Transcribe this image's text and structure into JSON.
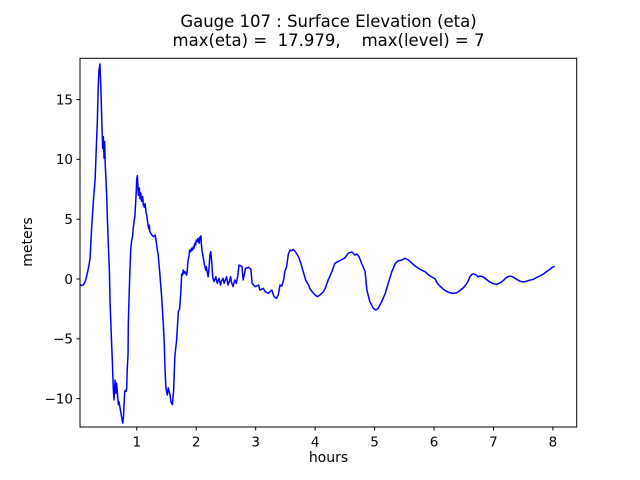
{
  "figure": {
    "background": "#ffffff",
    "axes_edge_color": "#000000"
  },
  "chart_data": {
    "type": "line",
    "title": "Gauge 107 : Surface Elevation (eta)",
    "subtitle": "max(eta) =  17.979,    max(level) = 7",
    "xlabel": "hours",
    "ylabel": "meters",
    "grid": false,
    "legend": null,
    "annotations": {
      "max_eta": 17.979,
      "max_level": 7
    },
    "xlim": [
      0.045,
      8.4
    ],
    "ylim": [
      -12.37,
      18.45
    ],
    "x_ticks": [
      1,
      2,
      3,
      4,
      5,
      6,
      7,
      8
    ],
    "x_tick_labels": [
      "1",
      "2",
      "3",
      "4",
      "5",
      "6",
      "7",
      "8"
    ],
    "y_ticks": [
      -10,
      -5,
      0,
      5,
      10,
      15
    ],
    "y_tick_labels": [
      "−10",
      "−5",
      "0",
      "5",
      "10",
      "15"
    ],
    "series": [
      {
        "name": "eta",
        "color": "#0000ff",
        "line_width": 1.5,
        "points": [
          [
            0.045,
            -0.45
          ],
          [
            0.07,
            -0.55
          ],
          [
            0.1,
            -0.5
          ],
          [
            0.13,
            -0.25
          ],
          [
            0.16,
            0.3
          ],
          [
            0.19,
            1.0
          ],
          [
            0.214,
            1.73
          ],
          [
            0.24,
            4.2
          ],
          [
            0.27,
            6.5
          ],
          [
            0.3,
            8.4
          ],
          [
            0.315,
            10.4
          ],
          [
            0.337,
            13.2
          ],
          [
            0.35,
            15.9
          ],
          [
            0.365,
            17.5
          ],
          [
            0.38,
            17.979
          ],
          [
            0.4,
            15.4
          ],
          [
            0.415,
            12.6
          ],
          [
            0.427,
            10.9
          ],
          [
            0.437,
            11.9
          ],
          [
            0.45,
            10.1
          ],
          [
            0.46,
            11.5
          ],
          [
            0.47,
            9.5
          ],
          [
            0.494,
            7.0
          ],
          [
            0.505,
            5.1
          ],
          [
            0.52,
            3.1
          ],
          [
            0.54,
            0.6
          ],
          [
            0.55,
            -1.9
          ],
          [
            0.57,
            -4.5
          ],
          [
            0.59,
            -7.0
          ],
          [
            0.605,
            -9.2
          ],
          [
            0.617,
            -10.1
          ],
          [
            0.634,
            -8.45
          ],
          [
            0.65,
            -9.55
          ],
          [
            0.66,
            -8.7
          ],
          [
            0.69,
            -10.5
          ],
          [
            0.7,
            -10.25
          ],
          [
            0.72,
            -10.8
          ],
          [
            0.74,
            -11.4
          ],
          [
            0.764,
            -12.05
          ],
          [
            0.775,
            -11.6
          ],
          [
            0.786,
            -10.5
          ],
          [
            0.797,
            -9.4
          ],
          [
            0.81,
            -9.3
          ],
          [
            0.82,
            -9.4
          ],
          [
            0.83,
            -9.15
          ],
          [
            0.84,
            -7.5
          ],
          [
            0.853,
            -6.3
          ],
          [
            0.858,
            -3.6
          ],
          [
            0.875,
            -0.8
          ],
          [
            0.886,
            0.9
          ],
          [
            0.9,
            2.57
          ],
          [
            0.915,
            3.26
          ],
          [
            0.93,
            3.54
          ],
          [
            0.94,
            4.24
          ],
          [
            0.97,
            5.35
          ],
          [
            0.988,
            7.0
          ],
          [
            1.0,
            8.4
          ],
          [
            1.01,
            8.64
          ],
          [
            1.027,
            7.0
          ],
          [
            1.043,
            7.6
          ],
          [
            1.055,
            6.7
          ],
          [
            1.066,
            7.2
          ],
          [
            1.08,
            6.5
          ],
          [
            1.1,
            6.9
          ],
          [
            1.11,
            6.2
          ],
          [
            1.127,
            6.0
          ],
          [
            1.14,
            6.3
          ],
          [
            1.155,
            5.6
          ],
          [
            1.167,
            5.35
          ],
          [
            1.18,
            4.8
          ],
          [
            1.2,
            4.2
          ],
          [
            1.21,
            4.5
          ],
          [
            1.22,
            3.96
          ],
          [
            1.25,
            3.7
          ],
          [
            1.28,
            3.54
          ],
          [
            1.31,
            3.68
          ],
          [
            1.335,
            2.84
          ],
          [
            1.36,
            2.0
          ],
          [
            1.39,
            0.33
          ],
          [
            1.42,
            -1.6
          ],
          [
            1.447,
            -3.85
          ],
          [
            1.46,
            -5.1
          ],
          [
            1.476,
            -7.6
          ],
          [
            1.49,
            -9.1
          ],
          [
            1.514,
            -9.7
          ],
          [
            1.53,
            -9.1
          ],
          [
            1.56,
            -9.7
          ],
          [
            1.576,
            -10.3
          ],
          [
            1.6,
            -10.5
          ],
          [
            1.62,
            -9.3
          ],
          [
            1.64,
            -6.5
          ],
          [
            1.67,
            -5.1
          ],
          [
            1.7,
            -2.7
          ],
          [
            1.72,
            -2.5
          ],
          [
            1.74,
            -1.2
          ],
          [
            1.755,
            0.4
          ],
          [
            1.77,
            0.33
          ],
          [
            1.78,
            0.75
          ],
          [
            1.795,
            0.47
          ],
          [
            1.81,
            0.61
          ],
          [
            1.84,
            0.33
          ],
          [
            1.85,
            0.75
          ],
          [
            1.86,
            1.45
          ],
          [
            1.88,
            2.0
          ],
          [
            1.89,
            2.42
          ],
          [
            1.91,
            2.28
          ],
          [
            1.92,
            2.57
          ],
          [
            1.94,
            2.42
          ],
          [
            1.95,
            2.7
          ],
          [
            1.96,
            2.57
          ],
          [
            1.975,
            2.98
          ],
          [
            1.99,
            2.84
          ],
          [
            2.0,
            3.26
          ],
          [
            2.02,
            3.12
          ],
          [
            2.03,
            3.4
          ],
          [
            2.05,
            2.98
          ],
          [
            2.06,
            3.48
          ],
          [
            2.08,
            3.6
          ],
          [
            2.085,
            2.98
          ],
          [
            2.1,
            2.28
          ],
          [
            2.115,
            1.86
          ],
          [
            2.13,
            1.45
          ],
          [
            2.14,
            1.17
          ],
          [
            2.16,
            0.75
          ],
          [
            2.17,
            1.03
          ],
          [
            2.185,
            0.61
          ],
          [
            2.2,
            0.19
          ],
          [
            2.215,
            0.89
          ],
          [
            2.23,
            2.0
          ],
          [
            2.245,
            2.28
          ],
          [
            2.255,
            1.73
          ],
          [
            2.27,
            0.75
          ],
          [
            2.28,
            0.06
          ],
          [
            2.3,
            -0.22
          ],
          [
            2.31,
            -0.08
          ],
          [
            2.33,
            0.19
          ],
          [
            2.34,
            -0.08
          ],
          [
            2.355,
            -0.36
          ],
          [
            2.37,
            -0.08
          ],
          [
            2.385,
            0.06
          ],
          [
            2.395,
            -0.22
          ],
          [
            2.41,
            -0.5
          ],
          [
            2.42,
            -0.22
          ],
          [
            2.45,
            0.06
          ],
          [
            2.47,
            -0.36
          ],
          [
            2.48,
            -0.22
          ],
          [
            2.51,
            0.19
          ],
          [
            2.525,
            -0.22
          ],
          [
            2.535,
            -0.5
          ],
          [
            2.565,
            -0.08
          ],
          [
            2.58,
            0.19
          ],
          [
            2.59,
            -0.22
          ],
          [
            2.62,
            -0.64
          ],
          [
            2.64,
            -0.22
          ],
          [
            2.65,
            -0.08
          ],
          [
            2.675,
            -0.36
          ],
          [
            2.7,
            0.3
          ],
          [
            2.72,
            1.17
          ],
          [
            2.77,
            1.03
          ],
          [
            2.79,
            -0.08
          ],
          [
            2.83,
            0.89
          ],
          [
            2.88,
            0.98
          ],
          [
            2.92,
            0.81
          ],
          [
            2.94,
            -0.36
          ],
          [
            2.99,
            -0.64
          ],
          [
            3.05,
            -0.5
          ],
          [
            3.07,
            -0.92
          ],
          [
            3.13,
            -0.78
          ],
          [
            3.16,
            -1.06
          ],
          [
            3.21,
            -1.2
          ],
          [
            3.27,
            -0.92
          ],
          [
            3.31,
            -1.48
          ],
          [
            3.35,
            -1.61
          ],
          [
            3.38,
            -1.34
          ],
          [
            3.41,
            -0.5
          ],
          [
            3.44,
            -0.59
          ],
          [
            3.47,
            -0.08
          ],
          [
            3.49,
            0.61
          ],
          [
            3.52,
            1.03
          ],
          [
            3.55,
            2.09
          ],
          [
            3.58,
            2.42
          ],
          [
            3.61,
            2.37
          ],
          [
            3.63,
            2.48
          ],
          [
            3.67,
            2.28
          ],
          [
            3.72,
            1.86
          ],
          [
            3.76,
            1.31
          ],
          [
            3.8,
            0.61
          ],
          [
            3.84,
            -0.08
          ],
          [
            3.89,
            -0.5
          ],
          [
            3.91,
            -0.78
          ],
          [
            3.95,
            -1.06
          ],
          [
            4.0,
            -1.34
          ],
          [
            4.04,
            -1.48
          ],
          [
            4.08,
            -1.34
          ],
          [
            4.14,
            -1.06
          ],
          [
            4.17,
            -0.78
          ],
          [
            4.22,
            -0.08
          ],
          [
            4.28,
            0.6
          ],
          [
            4.33,
            1.3
          ],
          [
            4.39,
            1.48
          ],
          [
            4.44,
            1.6
          ],
          [
            4.5,
            1.76
          ],
          [
            4.56,
            2.17
          ],
          [
            4.62,
            2.26
          ],
          [
            4.67,
            2.0
          ],
          [
            4.7,
            2.1
          ],
          [
            4.74,
            1.85
          ],
          [
            4.78,
            1.34
          ],
          [
            4.84,
            0.64
          ],
          [
            4.87,
            -0.9
          ],
          [
            4.92,
            -1.9
          ],
          [
            4.98,
            -2.45
          ],
          [
            5.02,
            -2.59
          ],
          [
            5.06,
            -2.45
          ],
          [
            5.12,
            -1.9
          ],
          [
            5.18,
            -1.2
          ],
          [
            5.23,
            -0.36
          ],
          [
            5.29,
            0.61
          ],
          [
            5.35,
            1.31
          ],
          [
            5.4,
            1.53
          ],
          [
            5.46,
            1.59
          ],
          [
            5.51,
            1.73
          ],
          [
            5.57,
            1.59
          ],
          [
            5.63,
            1.31
          ],
          [
            5.68,
            1.09
          ],
          [
            5.74,
            0.89
          ],
          [
            5.79,
            0.75
          ],
          [
            5.85,
            0.61
          ],
          [
            5.91,
            0.33
          ],
          [
            5.96,
            0.19
          ],
          [
            6.02,
            0.0
          ],
          [
            6.05,
            -0.31
          ],
          [
            6.1,
            -0.59
          ],
          [
            6.16,
            -0.86
          ],
          [
            6.21,
            -1.03
          ],
          [
            6.27,
            -1.15
          ],
          [
            6.32,
            -1.2
          ],
          [
            6.38,
            -1.15
          ],
          [
            6.44,
            -0.95
          ],
          [
            6.49,
            -0.75
          ],
          [
            6.55,
            -0.39
          ],
          [
            6.58,
            -0.11
          ],
          [
            6.6,
            0.17
          ],
          [
            6.63,
            0.36
          ],
          [
            6.66,
            0.44
          ],
          [
            6.72,
            0.31
          ],
          [
            6.74,
            0.17
          ],
          [
            6.77,
            0.25
          ],
          [
            6.83,
            0.17
          ],
          [
            6.88,
            -0.03
          ],
          [
            6.94,
            -0.25
          ],
          [
            7.0,
            -0.39
          ],
          [
            7.05,
            -0.45
          ],
          [
            7.11,
            -0.33
          ],
          [
            7.17,
            -0.11
          ],
          [
            7.22,
            0.14
          ],
          [
            7.28,
            0.25
          ],
          [
            7.33,
            0.17
          ],
          [
            7.39,
            -0.03
          ],
          [
            7.45,
            -0.19
          ],
          [
            7.5,
            -0.25
          ],
          [
            7.56,
            -0.19
          ],
          [
            7.6,
            -0.11
          ],
          [
            7.67,
            -0.03
          ],
          [
            7.73,
            0.14
          ],
          [
            7.78,
            0.25
          ],
          [
            7.84,
            0.42
          ],
          [
            7.89,
            0.61
          ],
          [
            7.95,
            0.81
          ],
          [
            7.99,
            0.98
          ],
          [
            8.02,
            1.03
          ]
        ]
      }
    ]
  }
}
